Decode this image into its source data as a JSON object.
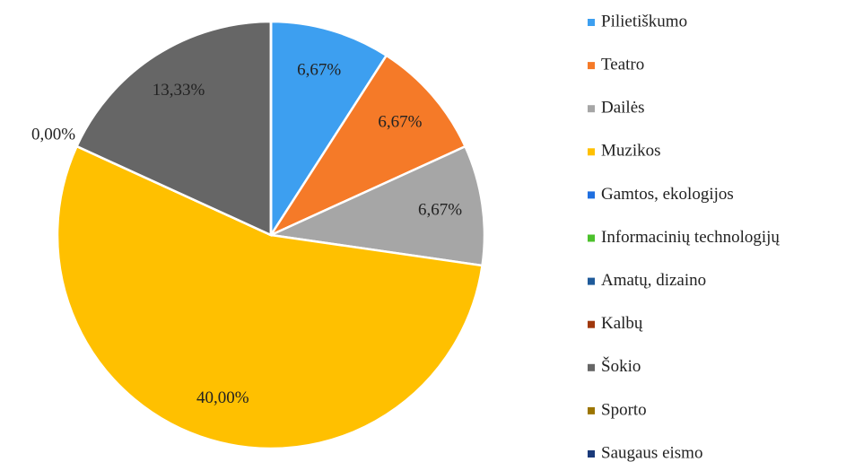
{
  "chart_data": {
    "type": "pie",
    "categories": [
      "Pilietiškumo",
      "Teatro",
      "Dailės",
      "Muzikos",
      "Gamtos, ekologijos",
      "Informacinių technologijų",
      "Amatų, dizaino",
      "Kalbų",
      "Šokio",
      "Sporto",
      "Saugaus eismo"
    ],
    "values": [
      6.67,
      6.67,
      6.67,
      40,
      0,
      0,
      0,
      0,
      13.33,
      0,
      0
    ],
    "value_labels": [
      "6,67%",
      "6,67%",
      "6,67%",
      "40,00%",
      "0,00%",
      null,
      null,
      null,
      "13,33%",
      null,
      null
    ],
    "colors": [
      "#3d9ff0",
      "#f57a28",
      "#a6a6a6",
      "#ffc000",
      "#1f6fe0",
      "#4cc12c",
      "#1f5a9a",
      "#a0380c",
      "#666666",
      "#9c7500",
      "#1a3a7a"
    ],
    "legend": "right"
  }
}
